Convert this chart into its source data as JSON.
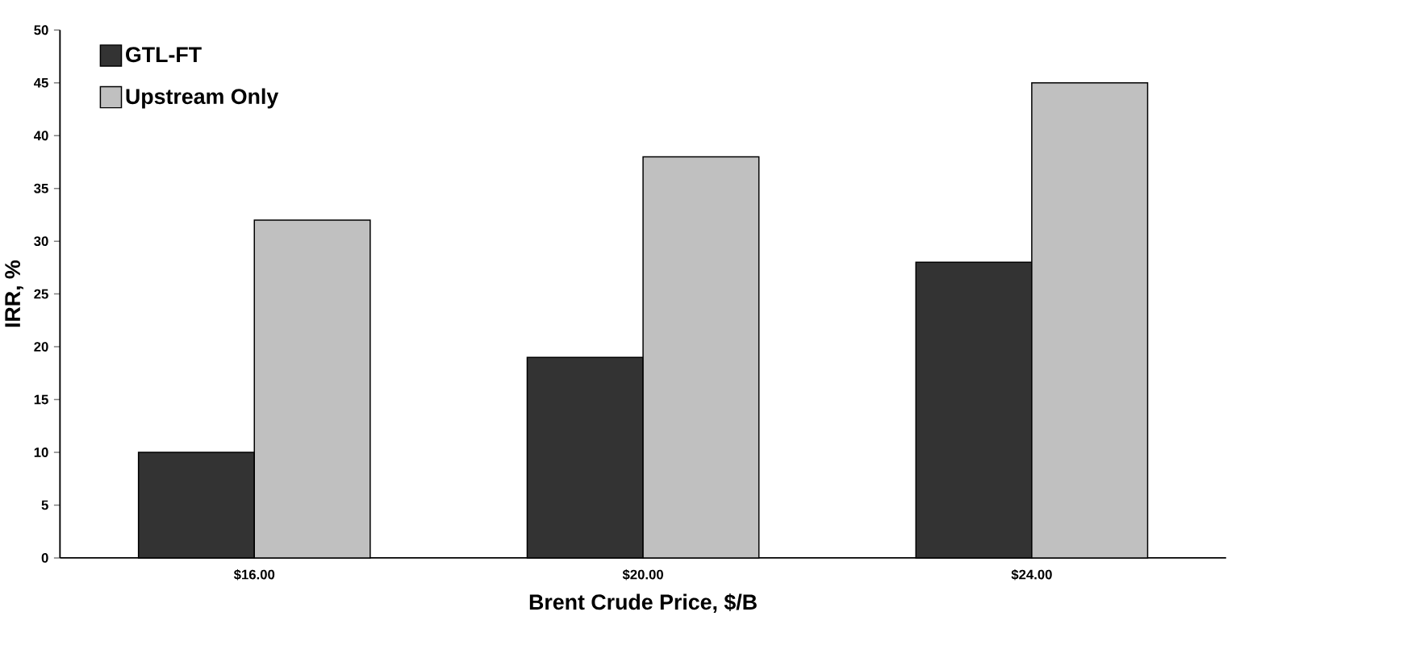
{
  "chart_data": {
    "type": "bar",
    "xlabel": "Brent Crude Price, $/B",
    "ylabel": "IRR, %",
    "categories": [
      "$16.00",
      "$20.00",
      "$24.00"
    ],
    "series": [
      {
        "name": "GTL-FT",
        "color": "#333333",
        "values": [
          10,
          19,
          28
        ]
      },
      {
        "name": "Upstream Only",
        "color": "#c0c0c0",
        "values": [
          32,
          38,
          45
        ]
      }
    ],
    "ylim": [
      0,
      50
    ],
    "yticks": [
      0,
      5,
      10,
      15,
      20,
      25,
      30,
      35,
      40,
      45,
      50
    ],
    "legend": "top left"
  }
}
